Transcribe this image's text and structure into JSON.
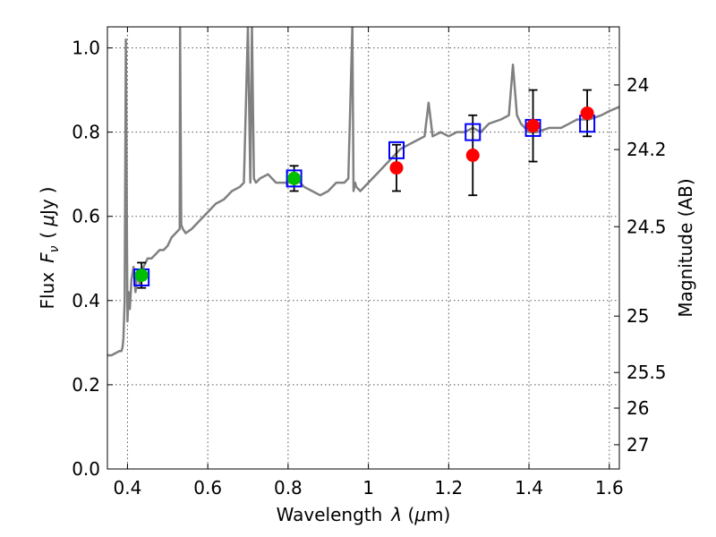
{
  "chart_data": {
    "type": "scatter",
    "title": "",
    "xlabel": {
      "prefix": "Wavelength",
      "symbol": "λ",
      "unit_open": " (",
      "unit_sym": "μ",
      "unit_rest": "m)"
    },
    "ylabel": {
      "prefix": "Flux",
      "symbol": "F",
      "subscript": "ν",
      "unit_open": "(",
      "unit_sym": "μ",
      "unit_rest": "Jy",
      "unit_close": ")"
    },
    "y2label": "Magnitude (AB)",
    "xlim": [
      0.35,
      1.625
    ],
    "ylim": [
      0.0,
      1.05
    ],
    "grid": true,
    "x_ticks": [
      {
        "value": 0.4,
        "label": "0.4"
      },
      {
        "value": 0.6,
        "label": "0.6"
      },
      {
        "value": 0.8,
        "label": "0.8"
      },
      {
        "value": 1.0,
        "label": "1"
      },
      {
        "value": 1.2,
        "label": "1.2"
      },
      {
        "value": 1.4,
        "label": "1.4"
      },
      {
        "value": 1.6,
        "label": "1.6"
      }
    ],
    "y_ticks": [
      {
        "value": 0.0,
        "label": "0.0"
      },
      {
        "value": 0.2,
        "label": "0.2"
      },
      {
        "value": 0.4,
        "label": "0.4"
      },
      {
        "value": 0.6,
        "label": "0.6"
      },
      {
        "value": 0.8,
        "label": "0.8"
      },
      {
        "value": 1.0,
        "label": "1.0"
      }
    ],
    "y2_ticks": [
      {
        "value": 24,
        "label": "24"
      },
      {
        "value": 24.2,
        "label": "24.2"
      },
      {
        "value": 24.5,
        "label": "24.5"
      },
      {
        "value": 25,
        "label": "25"
      },
      {
        "value": 25.5,
        "label": "25.5"
      },
      {
        "value": 26,
        "label": "26"
      },
      {
        "value": 27,
        "label": "27"
      }
    ],
    "colors": {
      "model": "#808080",
      "observed_optical": "#00bf00",
      "observed_nir": "#ff0000",
      "model_box": "#0000ff",
      "errorbar": "#000000",
      "grid": "#808080"
    },
    "series": [
      {
        "name": "model spectrum",
        "kind": "line",
        "x": [
          0.35,
          0.36,
          0.37,
          0.38,
          0.385,
          0.388,
          0.39,
          0.393,
          0.396,
          0.4,
          0.403,
          0.406,
          0.41,
          0.415,
          0.42,
          0.425,
          0.43,
          0.44,
          0.45,
          0.46,
          0.47,
          0.48,
          0.49,
          0.5,
          0.51,
          0.52,
          0.53,
          0.531,
          0.534,
          0.538,
          0.545,
          0.56,
          0.58,
          0.6,
          0.62,
          0.64,
          0.66,
          0.68,
          0.69,
          0.7,
          0.706,
          0.71,
          0.715,
          0.72,
          0.73,
          0.75,
          0.77,
          0.8,
          0.82,
          0.84,
          0.86,
          0.88,
          0.9,
          0.92,
          0.94,
          0.95,
          0.96,
          0.963,
          0.967,
          0.97,
          0.98,
          1.0,
          1.02,
          1.04,
          1.06,
          1.08,
          1.1,
          1.12,
          1.14,
          1.15,
          1.16,
          1.18,
          1.2,
          1.22,
          1.24,
          1.26,
          1.28,
          1.3,
          1.33,
          1.35,
          1.36,
          1.37,
          1.38,
          1.4,
          1.42,
          1.45,
          1.48,
          1.5,
          1.52,
          1.55,
          1.58,
          1.6,
          1.625
        ],
        "y": [
          0.27,
          0.27,
          0.275,
          0.28,
          0.28,
          0.29,
          0.31,
          0.4,
          1.02,
          0.35,
          0.42,
          0.38,
          0.45,
          0.48,
          0.42,
          0.47,
          0.44,
          0.48,
          0.5,
          0.5,
          0.51,
          0.52,
          0.52,
          0.53,
          0.55,
          0.56,
          0.57,
          1.05,
          0.58,
          0.57,
          0.56,
          0.57,
          0.59,
          0.61,
          0.63,
          0.64,
          0.66,
          0.67,
          0.68,
          1.05,
          0.68,
          1.05,
          0.69,
          0.68,
          0.69,
          0.7,
          0.68,
          0.68,
          0.69,
          0.67,
          0.66,
          0.65,
          0.66,
          0.68,
          0.68,
          0.69,
          1.05,
          0.66,
          0.68,
          0.67,
          0.66,
          0.68,
          0.7,
          0.72,
          0.74,
          0.76,
          0.77,
          0.78,
          0.79,
          0.87,
          0.79,
          0.8,
          0.79,
          0.8,
          0.8,
          0.81,
          0.8,
          0.82,
          0.83,
          0.84,
          0.96,
          0.84,
          0.82,
          0.8,
          0.8,
          0.81,
          0.81,
          0.82,
          0.83,
          0.83,
          0.84,
          0.85,
          0.86
        ]
      },
      {
        "name": "observed optical",
        "kind": "points",
        "points": [
          {
            "x": 0.435,
            "y": 0.46,
            "err": 0.03
          },
          {
            "x": 0.815,
            "y": 0.69,
            "err": 0.03
          }
        ]
      },
      {
        "name": "observed near-IR",
        "kind": "points",
        "points": [
          {
            "x": 1.07,
            "y": 0.715,
            "err": 0.055
          },
          {
            "x": 1.26,
            "y": 0.745,
            "err": 0.095
          },
          {
            "x": 1.41,
            "y": 0.815,
            "err": 0.085
          },
          {
            "x": 1.545,
            "y": 0.845,
            "err": 0.055
          }
        ]
      },
      {
        "name": "model photometry",
        "kind": "boxes",
        "points": [
          {
            "x": 0.435,
            "y": 0.455
          },
          {
            "x": 0.815,
            "y": 0.69
          },
          {
            "x": 1.07,
            "y": 0.757
          },
          {
            "x": 1.26,
            "y": 0.8
          },
          {
            "x": 1.41,
            "y": 0.81
          },
          {
            "x": 1.545,
            "y": 0.82
          }
        ]
      }
    ]
  }
}
